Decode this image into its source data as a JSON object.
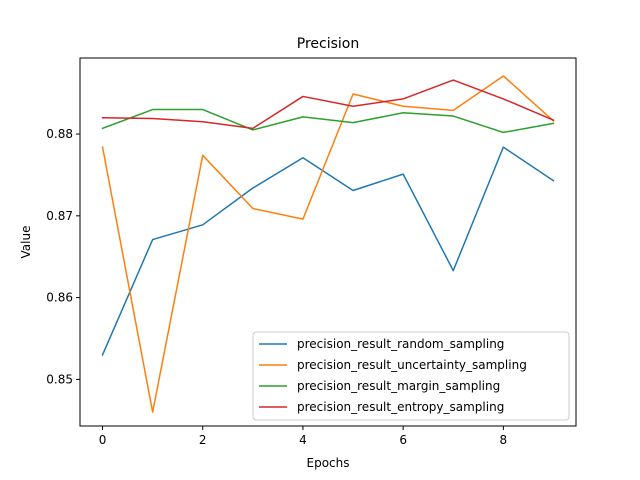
{
  "chart_data": {
    "type": "line",
    "title": "Precision",
    "xlabel": "Epochs",
    "ylabel": "Value",
    "x": [
      0,
      1,
      2,
      3,
      4,
      5,
      6,
      7,
      8,
      9
    ],
    "xlim": [
      -0.45,
      9.45
    ],
    "ylim": [
      0.8443,
      0.8893
    ],
    "xticks": [
      0,
      2,
      4,
      6,
      8
    ],
    "yticks": [
      0.85,
      0.86,
      0.87,
      0.88
    ],
    "ytick_labels": [
      "0.85",
      "0.86",
      "0.87",
      "0.88"
    ],
    "grid": false,
    "legend_position": "lower-right",
    "series": [
      {
        "name": "precision_result_random_sampling",
        "color": "#1f77b4",
        "values": [
          0.853,
          0.8671,
          0.8689,
          0.8734,
          0.8771,
          0.8731,
          0.8751,
          0.8633,
          0.8784,
          0.8743
        ]
      },
      {
        "name": "precision_result_uncertainty_sampling",
        "color": "#ff7f0e",
        "values": [
          0.8784,
          0.846,
          0.8774,
          0.8709,
          0.8696,
          0.8849,
          0.8834,
          0.8829,
          0.8871,
          0.8816
        ]
      },
      {
        "name": "precision_result_margin_sampling",
        "color": "#2ca02c",
        "values": [
          0.8807,
          0.883,
          0.883,
          0.8805,
          0.8821,
          0.8814,
          0.8826,
          0.8822,
          0.8802,
          0.8813
        ]
      },
      {
        "name": "precision_result_entropy_sampling",
        "color": "#d62728",
        "values": [
          0.882,
          0.8819,
          0.8815,
          0.8807,
          0.8846,
          0.8834,
          0.8843,
          0.8866,
          0.8843,
          0.8817
        ]
      }
    ]
  }
}
